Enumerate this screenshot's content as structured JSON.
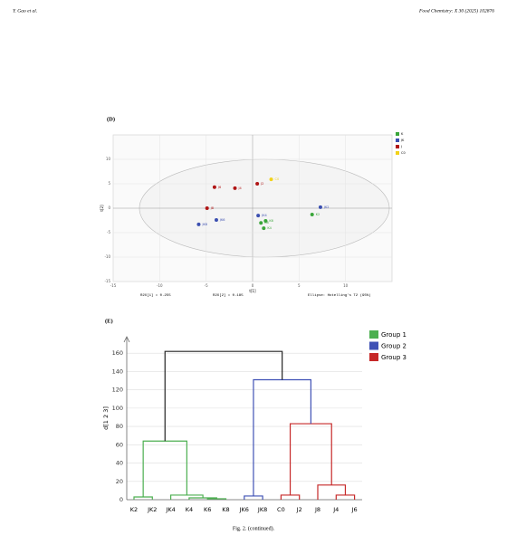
{
  "header": {
    "left": "Y. Gao et al.",
    "right": "Food Chemistry: X 30 (2025) 102876"
  },
  "caption": "Fig. 2. (continued).",
  "chart_data": [
    {
      "type": "scatter",
      "title": "(D)",
      "xlabel": "t[1]",
      "ylabel": "t[2]",
      "annotations": [
        "R2X[1] = 0.255",
        "R2X[2] = 0.185",
        "Ellipse: Hotelling's T2 (95%)"
      ],
      "xlim": [
        -15,
        15
      ],
      "ylim": [
        -15,
        15
      ],
      "xticks": [
        -15,
        -10,
        -5,
        0,
        5,
        10
      ],
      "yticks": [
        -15,
        -10,
        -5,
        0,
        5,
        10
      ],
      "series": [
        {
          "name": "K",
          "color": "#3aa63a",
          "labels": [
            "K2",
            "K4",
            "K6",
            "K8"
          ],
          "x": [
            6.4,
            1.2,
            1.4,
            0.9
          ],
          "values": [
            -1.3,
            -4.1,
            -2.6,
            -3.0
          ]
        },
        {
          "name": "JK",
          "color": "#3b4fb0",
          "labels": [
            "JK2",
            "JK4",
            "JK6",
            "JK8"
          ],
          "x": [
            7.3,
            0.6,
            -3.9,
            -5.8
          ],
          "values": [
            0.2,
            -1.5,
            -2.4,
            -3.3
          ]
        },
        {
          "name": "J",
          "color": "#b01515",
          "labels": [
            "J2",
            "J4",
            "J6",
            "J8"
          ],
          "x": [
            0.5,
            -1.9,
            -4.1,
            -4.9
          ],
          "values": [
            5.0,
            4.1,
            4.3,
            0.0
          ]
        },
        {
          "name": "C0",
          "color": "#f2d21a",
          "labels": [
            "C0"
          ],
          "x": [
            2.0
          ],
          "values": [
            5.9
          ]
        }
      ]
    },
    {
      "type": "dendrogram",
      "title": "(E)",
      "ylabel": "d[1 2 3]",
      "ylim": [
        0,
        178
      ],
      "yticks": [
        0,
        20,
        40,
        60,
        80,
        100,
        120,
        140,
        160
      ],
      "categories": [
        "K2",
        "JK2",
        "JK4",
        "K4",
        "K6",
        "K8",
        "JK6",
        "JK8",
        "C0",
        "J2",
        "J8",
        "J4",
        "J6"
      ],
      "legend": [
        {
          "name": "Group 1",
          "color": "#4caf50"
        },
        {
          "name": "Group 2",
          "color": "#3f51b5"
        },
        {
          "name": "Group 3",
          "color": "#c62828"
        }
      ],
      "links": [
        {
          "children": [
            4,
            5
          ],
          "height": 1,
          "color": "#4caf50"
        },
        {
          "children": [
            3,
            13
          ],
          "height": 2,
          "color": "#4caf50"
        },
        {
          "children": [
            2,
            14
          ],
          "height": 5,
          "color": "#4caf50"
        },
        {
          "children": [
            0,
            1
          ],
          "height": 3,
          "color": "#4caf50"
        },
        {
          "children": [
            16,
            15
          ],
          "height": 64,
          "color": "#4caf50"
        },
        {
          "children": [
            6,
            7
          ],
          "height": 4,
          "color": "#3f51b5"
        },
        {
          "children": [
            8,
            9
          ],
          "height": 5,
          "color": "#c62828"
        },
        {
          "children": [
            11,
            12
          ],
          "height": 5,
          "color": "#c62828"
        },
        {
          "children": [
            10,
            20
          ],
          "height": 16,
          "color": "#c62828"
        },
        {
          "children": [
            19,
            21
          ],
          "height": 83,
          "color": "#c62828"
        },
        {
          "children": [
            18,
            22
          ],
          "height": 131,
          "color": "#3f51b5"
        },
        {
          "children": [
            17,
            23
          ],
          "height": 162,
          "color": "#222222"
        }
      ]
    }
  ]
}
